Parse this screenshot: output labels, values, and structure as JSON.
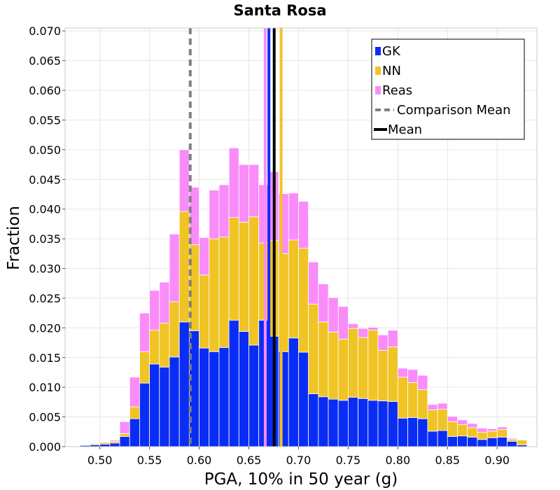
{
  "chart_data": {
    "type": "bar",
    "stacked": true,
    "title": "Santa Rosa",
    "xlabel": "PGA, 10% in 50 year (g)",
    "ylabel": "Fraction",
    "xlim": [
      0.465,
      0.94
    ],
    "ylim": [
      0.0,
      0.0705
    ],
    "grid": true,
    "legend_position": "top-right",
    "xticks": [
      "0.50",
      "0.55",
      "0.60",
      "0.65",
      "0.70",
      "0.75",
      "0.80",
      "0.85",
      "0.90"
    ],
    "yticks": [
      "0.000",
      "0.005",
      "0.010",
      "0.015",
      "0.020",
      "0.025",
      "0.030",
      "0.035",
      "0.040",
      "0.045",
      "0.050",
      "0.055",
      "0.060",
      "0.065",
      "0.070"
    ],
    "bin_width": 0.01,
    "x": [
      0.475,
      0.485,
      0.495,
      0.505,
      0.515,
      0.525,
      0.535,
      0.545,
      0.555,
      0.565,
      0.575,
      0.585,
      0.595,
      0.605,
      0.615,
      0.625,
      0.635,
      0.645,
      0.655,
      0.665,
      0.675,
      0.685,
      0.695,
      0.705,
      0.715,
      0.725,
      0.735,
      0.745,
      0.755,
      0.765,
      0.775,
      0.785,
      0.795,
      0.805,
      0.815,
      0.825,
      0.835,
      0.845,
      0.855,
      0.865,
      0.875,
      0.885,
      0.895,
      0.905,
      0.915,
      0.925
    ],
    "series": [
      {
        "name": "GK",
        "color": "#0a2df5",
        "values": [
          0.0001,
          0.0002,
          0.0003,
          0.0004,
          0.0006,
          0.0017,
          0.0047,
          0.0107,
          0.0139,
          0.0134,
          0.0151,
          0.021,
          0.0195,
          0.0166,
          0.016,
          0.0167,
          0.0213,
          0.0194,
          0.0171,
          0.0213,
          0.0186,
          0.016,
          0.0183,
          0.0159,
          0.0089,
          0.0084,
          0.008,
          0.0078,
          0.0083,
          0.0081,
          0.0078,
          0.0077,
          0.0076,
          0.0048,
          0.0049,
          0.0047,
          0.0026,
          0.0027,
          0.0017,
          0.0018,
          0.0016,
          0.0012,
          0.0015,
          0.0016,
          0.0009,
          0.0003
        ]
      },
      {
        "name": "NN",
        "color": "#f0c425",
        "values": [
          0.0,
          0.0,
          0.0002,
          0.0003,
          0.0003,
          0.0005,
          0.002,
          0.0053,
          0.0057,
          0.0074,
          0.0093,
          0.0186,
          0.0145,
          0.0123,
          0.019,
          0.0186,
          0.0173,
          0.0184,
          0.0216,
          0.013,
          0.0161,
          0.0165,
          0.0165,
          0.0175,
          0.0151,
          0.0126,
          0.0113,
          0.0103,
          0.0116,
          0.0103,
          0.0118,
          0.0085,
          0.0092,
          0.0069,
          0.0059,
          0.0049,
          0.0036,
          0.0036,
          0.0025,
          0.0019,
          0.0016,
          0.0012,
          0.0011,
          0.0013,
          0.0003,
          0.0008
        ]
      },
      {
        "name": "Reas",
        "color": "#fa8cfa",
        "values": [
          0.0,
          0.0,
          0.0,
          0.0,
          0.0002,
          0.002,
          0.005,
          0.0065,
          0.0067,
          0.0069,
          0.0114,
          0.0104,
          0.0097,
          0.0063,
          0.0082,
          0.0088,
          0.0117,
          0.0097,
          0.0088,
          0.0098,
          0.0116,
          0.0101,
          0.0079,
          0.0079,
          0.0071,
          0.0064,
          0.0058,
          0.0055,
          0.0008,
          0.0015,
          0.0005,
          0.0026,
          0.0028,
          0.0015,
          0.0022,
          0.0024,
          0.0009,
          0.001,
          0.0009,
          0.0008,
          0.0007,
          0.0007,
          0.0004,
          0.0004,
          0.0002,
          0.0
        ]
      }
    ],
    "vlines": [
      {
        "name": "Comparison Mean",
        "x": 0.591,
        "color": "#808080",
        "style": "dashed"
      },
      {
        "name": "Mean",
        "x": 0.6755,
        "color": "#000000",
        "style": "solid"
      },
      {
        "name": "GK mean",
        "x": 0.6702,
        "color": "#0a2df5",
        "style": "solid"
      },
      {
        "name": "NN mean",
        "x": 0.6825,
        "color": "#f0c425",
        "style": "solid"
      },
      {
        "name": "Reas mean",
        "x": 0.6665,
        "color": "#fa8cfa",
        "style": "solid"
      }
    ],
    "legend": [
      {
        "label": "GK",
        "kind": "patch",
        "color": "#0a2df5"
      },
      {
        "label": "NN",
        "kind": "patch",
        "color": "#f0c425"
      },
      {
        "label": "Reas",
        "kind": "patch",
        "color": "#fa8cfa"
      },
      {
        "label": "Comparison Mean",
        "kind": "dashed",
        "color": "#808080"
      },
      {
        "label": "Mean",
        "kind": "line",
        "color": "#000000"
      }
    ]
  }
}
